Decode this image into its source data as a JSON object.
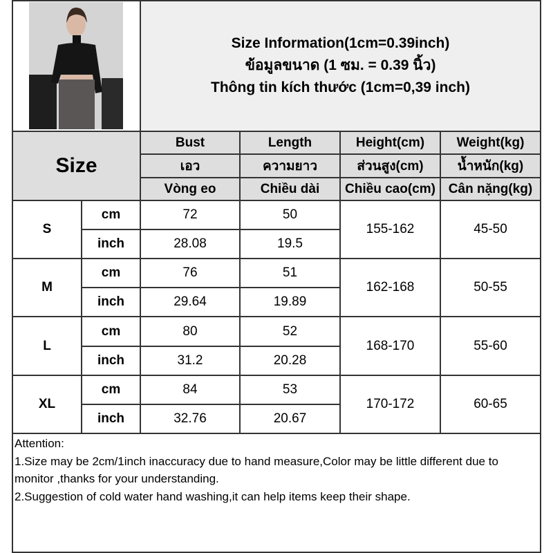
{
  "title": {
    "english": "Size Information(1cm=0.39inch)",
    "thai": "ข้อมูลขนาด (1 ซม. = 0.39 นิ้ว)",
    "vietnamese": "Thông tin kích thước (1cm=0,39 inch)"
  },
  "size_header": "Size",
  "columns": [
    {
      "en": "Bust",
      "th": "เอว",
      "vi": "Vòng eo"
    },
    {
      "en": "Length",
      "th": "ความยาว",
      "vi": "Chiều dài"
    },
    {
      "en": "Height(cm)",
      "th": "ส่วนสูง(cm)",
      "vi": "Chiều cao(cm)"
    },
    {
      "en": "Weight(kg)",
      "th": "น้ำหนัก(kg)",
      "vi": "Cân nặng(kg)"
    }
  ],
  "rows": [
    {
      "size": "S",
      "cm_label": "cm",
      "inch_label": "inch",
      "bust_cm": "72",
      "length_cm": "50",
      "bust_inch": "28.08",
      "length_inch": "19.5",
      "height": "155-162",
      "weight": "45-50"
    },
    {
      "size": "M",
      "cm_label": "cm",
      "inch_label": "inch",
      "bust_cm": "76",
      "length_cm": "51",
      "bust_inch": "29.64",
      "length_inch": "19.89",
      "height": "162-168",
      "weight": "50-55"
    },
    {
      "size": "L",
      "cm_label": "cm",
      "inch_label": "inch",
      "bust_cm": "80",
      "length_cm": "52",
      "bust_inch": "31.2",
      "length_inch": "20.28",
      "height": "168-170",
      "weight": "55-60"
    },
    {
      "size": "XL",
      "cm_label": "cm",
      "inch_label": "inch",
      "bust_cm": "84",
      "length_cm": "53",
      "bust_inch": "32.76",
      "length_inch": "20.67",
      "height": "170-172",
      "weight": "60-65"
    }
  ],
  "attention": {
    "heading": "Attention:",
    "notes": [
      "1.Size may be 2cm/1inch inaccuracy due to hand measure,Color may be little different due to monitor ,thanks for your understanding.",
      "2.Suggestion of cold water hand washing,it can help items keep their shape."
    ]
  }
}
